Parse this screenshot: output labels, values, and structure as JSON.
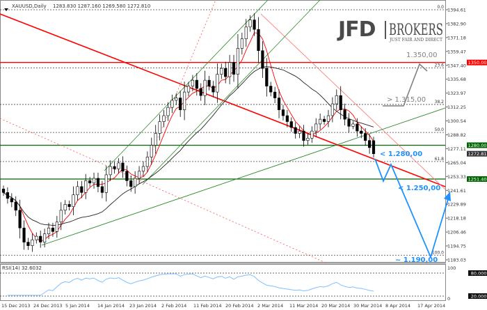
{
  "header": {
    "symbol": "XAUUSD,Daily",
    "ohlc": "1283.830 1287.160 1269.580 1272.810"
  },
  "logo": {
    "brand": "JFD",
    "name": "BROKERS",
    "tagline": "JUST FAIR AND DIRECT"
  },
  "colors": {
    "bull": "#ffffff",
    "bear": "#000000",
    "trend": "#ff0000",
    "channel": "#2e8b2e",
    "projection": "#1e90ff",
    "scenario": "#808080",
    "rsi": "#7fbfff"
  },
  "chart_data": {
    "type": "candlestick",
    "title": "XAUUSD,Daily",
    "last_bar": {
      "open": 1283.83,
      "high": 1287.16,
      "low": 1269.58,
      "close": 1272.81
    },
    "closes": [
      1240,
      1235,
      1232,
      1225,
      1210,
      1198,
      1195,
      1200,
      1203,
      1198,
      1205,
      1210,
      1207,
      1215,
      1225,
      1230,
      1228,
      1238,
      1245,
      1240,
      1250,
      1248,
      1252,
      1245,
      1240,
      1255,
      1262,
      1260,
      1265,
      1258,
      1250,
      1245,
      1252,
      1258,
      1262,
      1270,
      1280,
      1290,
      1300,
      1305,
      1312,
      1318,
      1320,
      1310,
      1325,
      1330,
      1335,
      1328,
      1322,
      1335,
      1330,
      1325,
      1340,
      1345,
      1338,
      1350,
      1340,
      1362,
      1370,
      1380,
      1386,
      1378,
      1360,
      1345,
      1330,
      1325,
      1320,
      1310,
      1305,
      1300,
      1295,
      1290,
      1292,
      1284,
      1286,
      1292,
      1298,
      1302,
      1300,
      1305,
      1315,
      1322,
      1310,
      1302,
      1296,
      1298,
      1292,
      1290,
      1284,
      1278,
      1272.81
    ],
    "ylim": [
      1183.03,
      1394.61
    ],
    "y_ticks": [
      "1394.61",
      "1382.90",
      "1371.18",
      "1359.47",
      "1347.40",
      "1335.68",
      "1323.97",
      "1312.25",
      "1300.54",
      "1288.82",
      "1277.11",
      "1265.04",
      "1253.33",
      "1241.61",
      "1229.89",
      "1218.18",
      "1206.46",
      "1194.75",
      "1183.03"
    ],
    "price_badges": [
      {
        "label": "1350.00",
        "value": 1350,
        "color": "#ff0000"
      },
      {
        "label": "1280.00",
        "value": 1280,
        "color": "#006400"
      },
      {
        "label": "1272.81",
        "value": 1272.81,
        "color": "#333333"
      },
      {
        "label": "1251.40",
        "value": 1251.4,
        "color": "#006400"
      }
    ],
    "x_ticks": [
      "15 Dec 2013",
      "24 Dec 2013",
      "5 Jan 2014",
      "14 Jan 2014",
      "23 Jan 2014",
      "2 Feb 2014",
      "11 Feb 2014",
      "20 Feb 2014",
      "2 Mar 2014",
      "11 Mar 2014",
      "20 Mar 2014",
      "30 Mar 2014",
      "8 Apr 2014",
      "17 Apr 2014"
    ],
    "fib_levels": [
      {
        "label": "0.0",
        "value": 1394.61
      },
      {
        "label": "23.6",
        "value": 1345.4
      },
      {
        "label": "38.2",
        "value": 1314.5
      },
      {
        "label": "50.0",
        "value": 1290.8
      },
      {
        "label": "61.8",
        "value": 1266.2
      },
      {
        "label": "100.0",
        "value": 1187.0
      }
    ],
    "annotations": [
      {
        "label": "1.350,00",
        "color": "#808080"
      },
      {
        "label": "> 1.315,00",
        "color": "#808080"
      },
      {
        "label": "< 1.280,00",
        "color": "#1e90ff"
      },
      {
        "label": "< 1.250,00",
        "color": "#1e90ff"
      },
      {
        "label": "~ 1.190,00",
        "color": "#1e90ff"
      }
    ],
    "rsi": {
      "label": "RSI(14) 32.6032",
      "levels": [
        "80.000",
        "20.000"
      ],
      "max_label": "100",
      "min_label": "0"
    }
  }
}
